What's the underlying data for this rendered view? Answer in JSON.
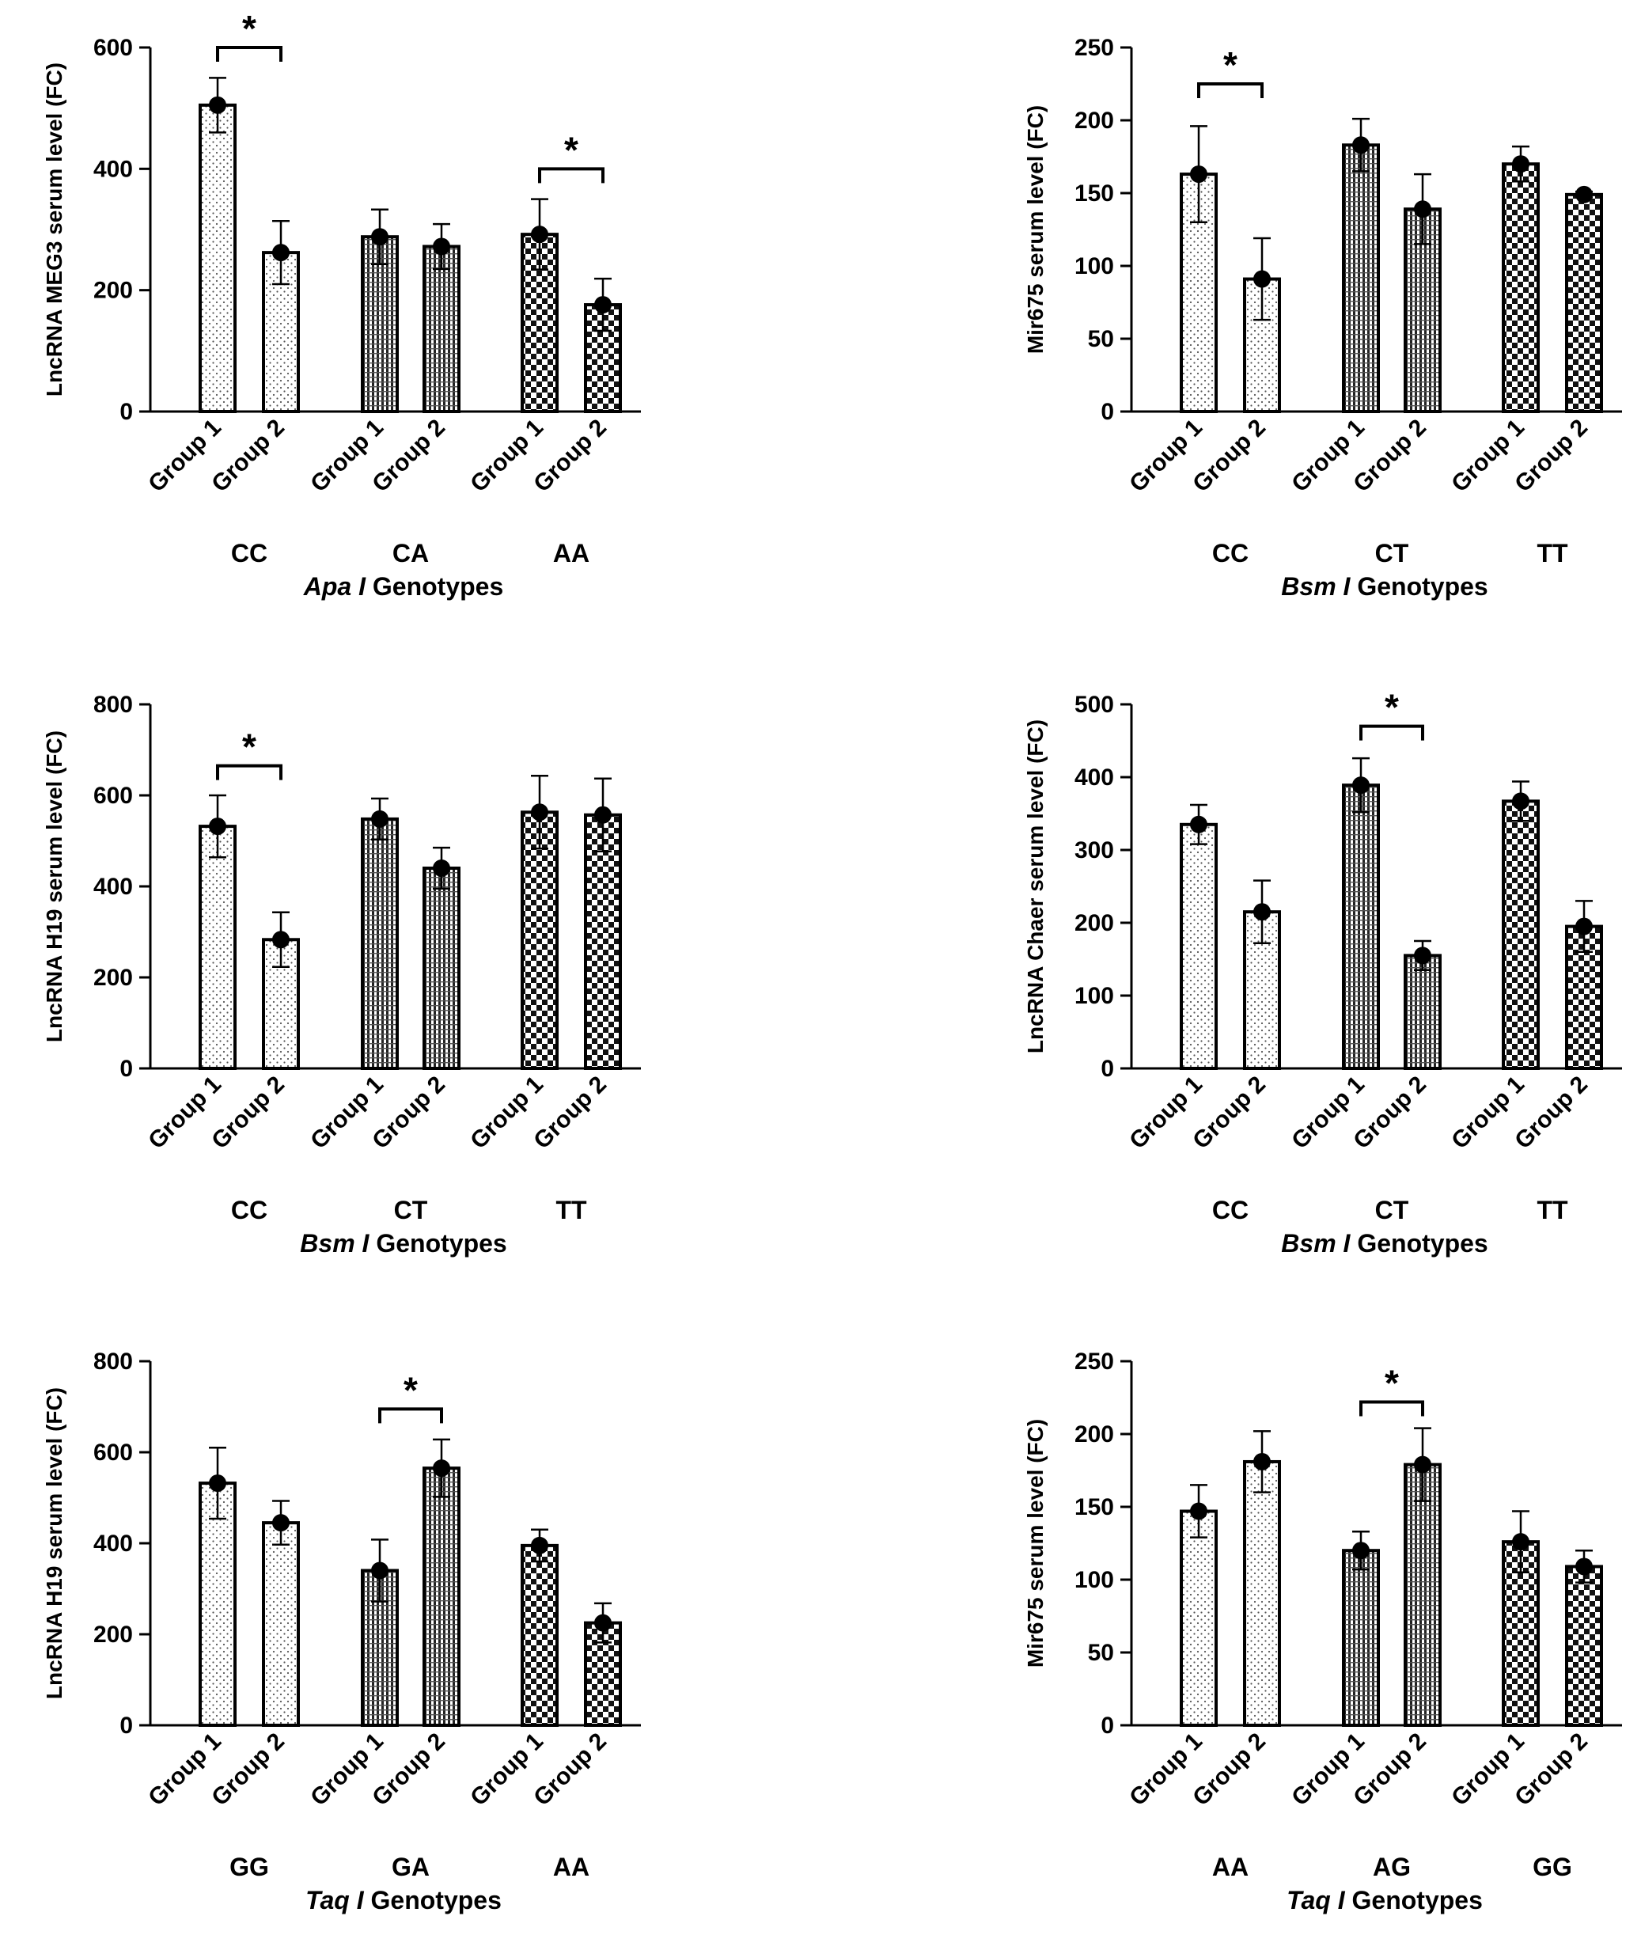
{
  "figure_label": "Serum lncRNA and miRNA levels by VDR genotype",
  "colors": {
    "ink": "#000000",
    "bar_light": "#ffffff"
  },
  "chart_data": [
    {
      "type": "bar",
      "title": "",
      "ylabel": "LncRNA MEG3 serum level (FC)",
      "xlabel_italic": "Apa I",
      "xlabel_rest": " Genotypes",
      "ylim": [
        0,
        600
      ],
      "yticks": [
        0,
        200,
        400,
        600
      ],
      "genotypes": [
        "CC",
        "CA",
        "AA"
      ],
      "groups": [
        "Group 1",
        "Group 2"
      ],
      "patterns": [
        "dots",
        "dots",
        "vlines",
        "vlines",
        "checker",
        "checker"
      ],
      "values": [
        505,
        262,
        288,
        272,
        292,
        176
      ],
      "errors": [
        45,
        52,
        45,
        37,
        58,
        43
      ],
      "significance": [
        {
          "between": [
            0,
            1
          ],
          "label": "*",
          "level": 600
        },
        {
          "between": [
            4,
            5
          ],
          "label": "*",
          "level": 400
        }
      ]
    },
    {
      "type": "bar",
      "title": "",
      "ylabel": "Mir675 serum level (FC)",
      "xlabel_italic": "Bsm I",
      "xlabel_rest": " Genotypes",
      "ylim": [
        0,
        250
      ],
      "yticks": [
        0,
        50,
        100,
        150,
        200,
        250
      ],
      "genotypes": [
        "CC",
        "CT",
        "TT"
      ],
      "groups": [
        "Group 1",
        "Group 2"
      ],
      "patterns": [
        "dots",
        "dots",
        "vlines",
        "vlines",
        "checker",
        "checker"
      ],
      "values": [
        163,
        91,
        183,
        139,
        170,
        149
      ],
      "errors": [
        33,
        28,
        18,
        24,
        12,
        2
      ],
      "significance": [
        {
          "between": [
            0,
            1
          ],
          "label": "*",
          "level": 225
        }
      ]
    },
    {
      "type": "bar",
      "title": "",
      "ylabel": "LncRNA H19 serum level (FC)",
      "xlabel_italic": "Bsm I",
      "xlabel_rest": " Genotypes",
      "ylim": [
        0,
        800
      ],
      "yticks": [
        0,
        200,
        400,
        600,
        800
      ],
      "genotypes": [
        "CC",
        "CT",
        "TT"
      ],
      "groups": [
        "Group 1",
        "Group 2"
      ],
      "patterns": [
        "dots",
        "dots",
        "vlines",
        "vlines",
        "checker",
        "checker"
      ],
      "values": [
        532,
        283,
        548,
        440,
        563,
        557
      ],
      "errors": [
        68,
        60,
        45,
        45,
        80,
        80
      ],
      "significance": [
        {
          "between": [
            0,
            1
          ],
          "label": "*",
          "level": 665
        }
      ]
    },
    {
      "type": "bar",
      "title": "",
      "ylabel": "LncRNA Chaer serum level (FC)",
      "xlabel_italic": "Bsm I",
      "xlabel_rest": " Genotypes",
      "ylim": [
        0,
        500
      ],
      "yticks": [
        0,
        100,
        200,
        300,
        400,
        500
      ],
      "genotypes": [
        "CC",
        "CT",
        "TT"
      ],
      "groups": [
        "Group 1",
        "Group 2"
      ],
      "patterns": [
        "dots",
        "dots",
        "vlines",
        "vlines",
        "checker",
        "checker"
      ],
      "values": [
        335,
        215,
        389,
        155,
        367,
        195
      ],
      "errors": [
        27,
        43,
        37,
        20,
        27,
        35
      ],
      "significance": [
        {
          "between": [
            2,
            3
          ],
          "label": "*",
          "level": 470
        }
      ]
    },
    {
      "type": "bar",
      "title": "",
      "ylabel": "LncRNA H19 serum level (FC)",
      "xlabel_italic": "Taq I",
      "xlabel_rest": " Genotypes",
      "ylim": [
        0,
        800
      ],
      "yticks": [
        0,
        200,
        400,
        600,
        800
      ],
      "genotypes": [
        "GG",
        "GA",
        "AA"
      ],
      "groups": [
        "Group 1",
        "Group 2"
      ],
      "patterns": [
        "dots",
        "dots",
        "vlines",
        "vlines",
        "checker",
        "checker"
      ],
      "values": [
        532,
        445,
        340,
        565,
        395,
        225
      ],
      "errors": [
        78,
        48,
        68,
        63,
        35,
        43
      ],
      "significance": [
        {
          "between": [
            2,
            3
          ],
          "label": "*",
          "level": 695
        }
      ]
    },
    {
      "type": "bar",
      "title": "",
      "ylabel": "Mir675 serum level (FC)",
      "xlabel_italic": "Taq I",
      "xlabel_rest": " Genotypes",
      "ylim": [
        0,
        250
      ],
      "yticks": [
        0,
        50,
        100,
        150,
        200,
        250
      ],
      "genotypes": [
        "AA",
        "AG",
        "GG"
      ],
      "groups": [
        "Group 1",
        "Group 2"
      ],
      "patterns": [
        "dots",
        "dots",
        "vlines",
        "vlines",
        "checker",
        "checker"
      ],
      "values": [
        147,
        181,
        120,
        179,
        126,
        109
      ],
      "errors": [
        18,
        21,
        13,
        25,
        21,
        11
      ],
      "significance": [
        {
          "between": [
            2,
            3
          ],
          "label": "*",
          "level": 222
        }
      ]
    }
  ]
}
